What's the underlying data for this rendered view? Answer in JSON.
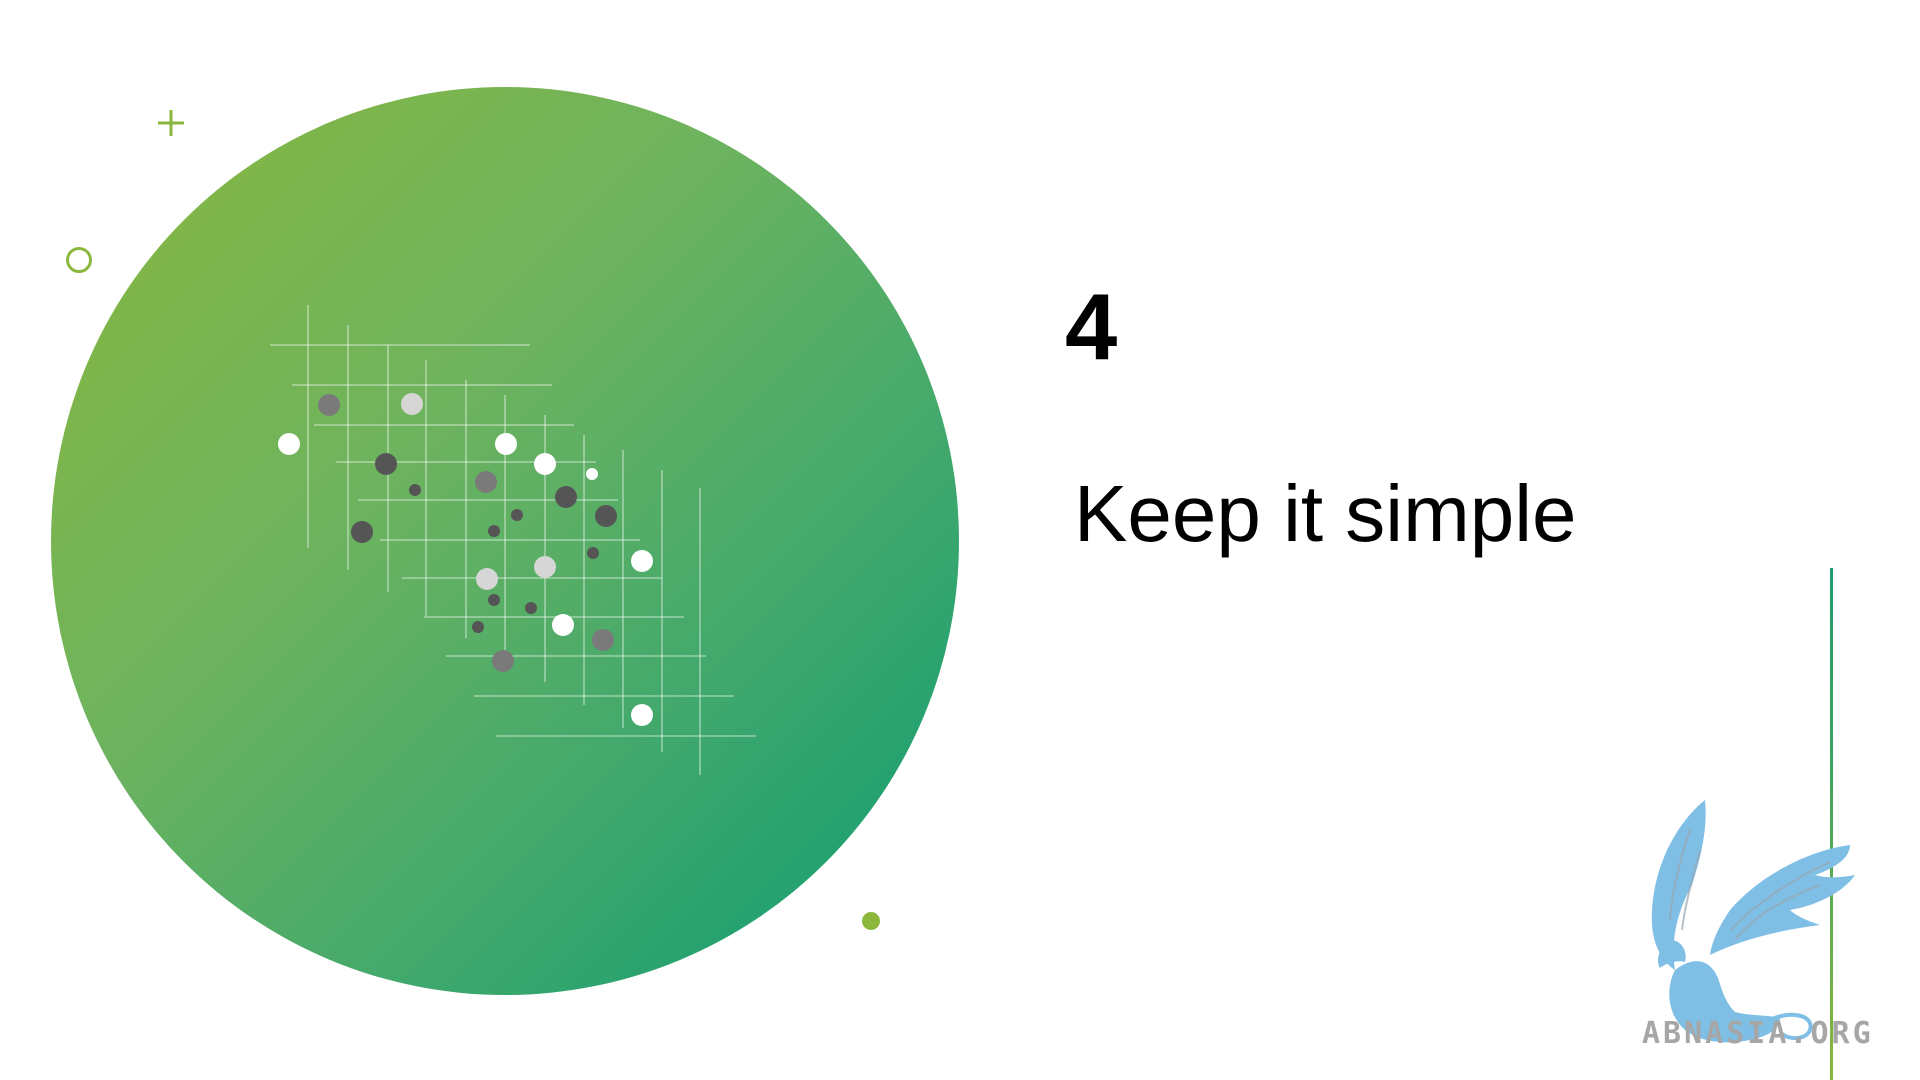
{
  "slide": {
    "number": "4",
    "title": "Keep it simple"
  },
  "watermark": {
    "text": "ABNASIA.ORG",
    "icon": "griffin-logo-icon"
  },
  "colors": {
    "accent_green": "#8ab73c",
    "accent_teal": "#0a9b72",
    "logo_blue": "#7fbfe6",
    "logo_text_gray": "#a6a6a6",
    "text": "#000000"
  },
  "decorations": {
    "plus_icon": "plus-icon",
    "ring_icon": "ring-icon",
    "dot_icon": "dot-icon"
  }
}
